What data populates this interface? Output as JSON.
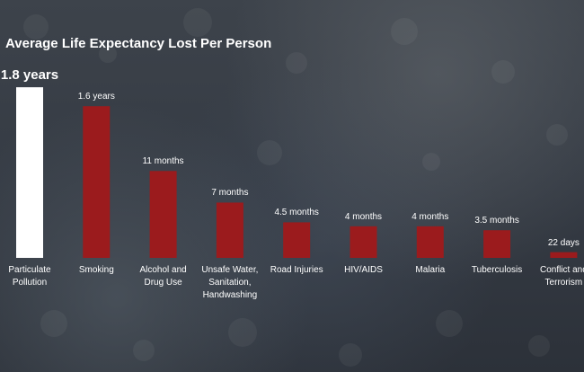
{
  "chart_data": {
    "type": "bar",
    "title": "Average Life Expectancy Lost Per Person",
    "categories": [
      "Particulate Pollution",
      "Smoking",
      "Alcohol and Drug Use",
      "Unsafe Water, Sanitation, Handwashing",
      "Road Injuries",
      "HIV/AIDS",
      "Malaria",
      "Tuberculosis",
      "Conflict and Terrorism"
    ],
    "values": [
      1.8,
      1.6,
      0.9167,
      0.5833,
      0.375,
      0.3333,
      0.3333,
      0.2917,
      0.0603
    ],
    "value_labels": [
      "1.8 years",
      "1.6 years",
      "11 months",
      "7 months",
      "4.5 months",
      "4 months",
      "4 months",
      "3.5 months",
      "22 days"
    ],
    "colors": [
      "#ffffff",
      "#9b1b1d",
      "#9b1b1d",
      "#9b1b1d",
      "#9b1b1d",
      "#9b1b1d",
      "#9b1b1d",
      "#9b1b1d",
      "#9b1b1d"
    ]
  }
}
